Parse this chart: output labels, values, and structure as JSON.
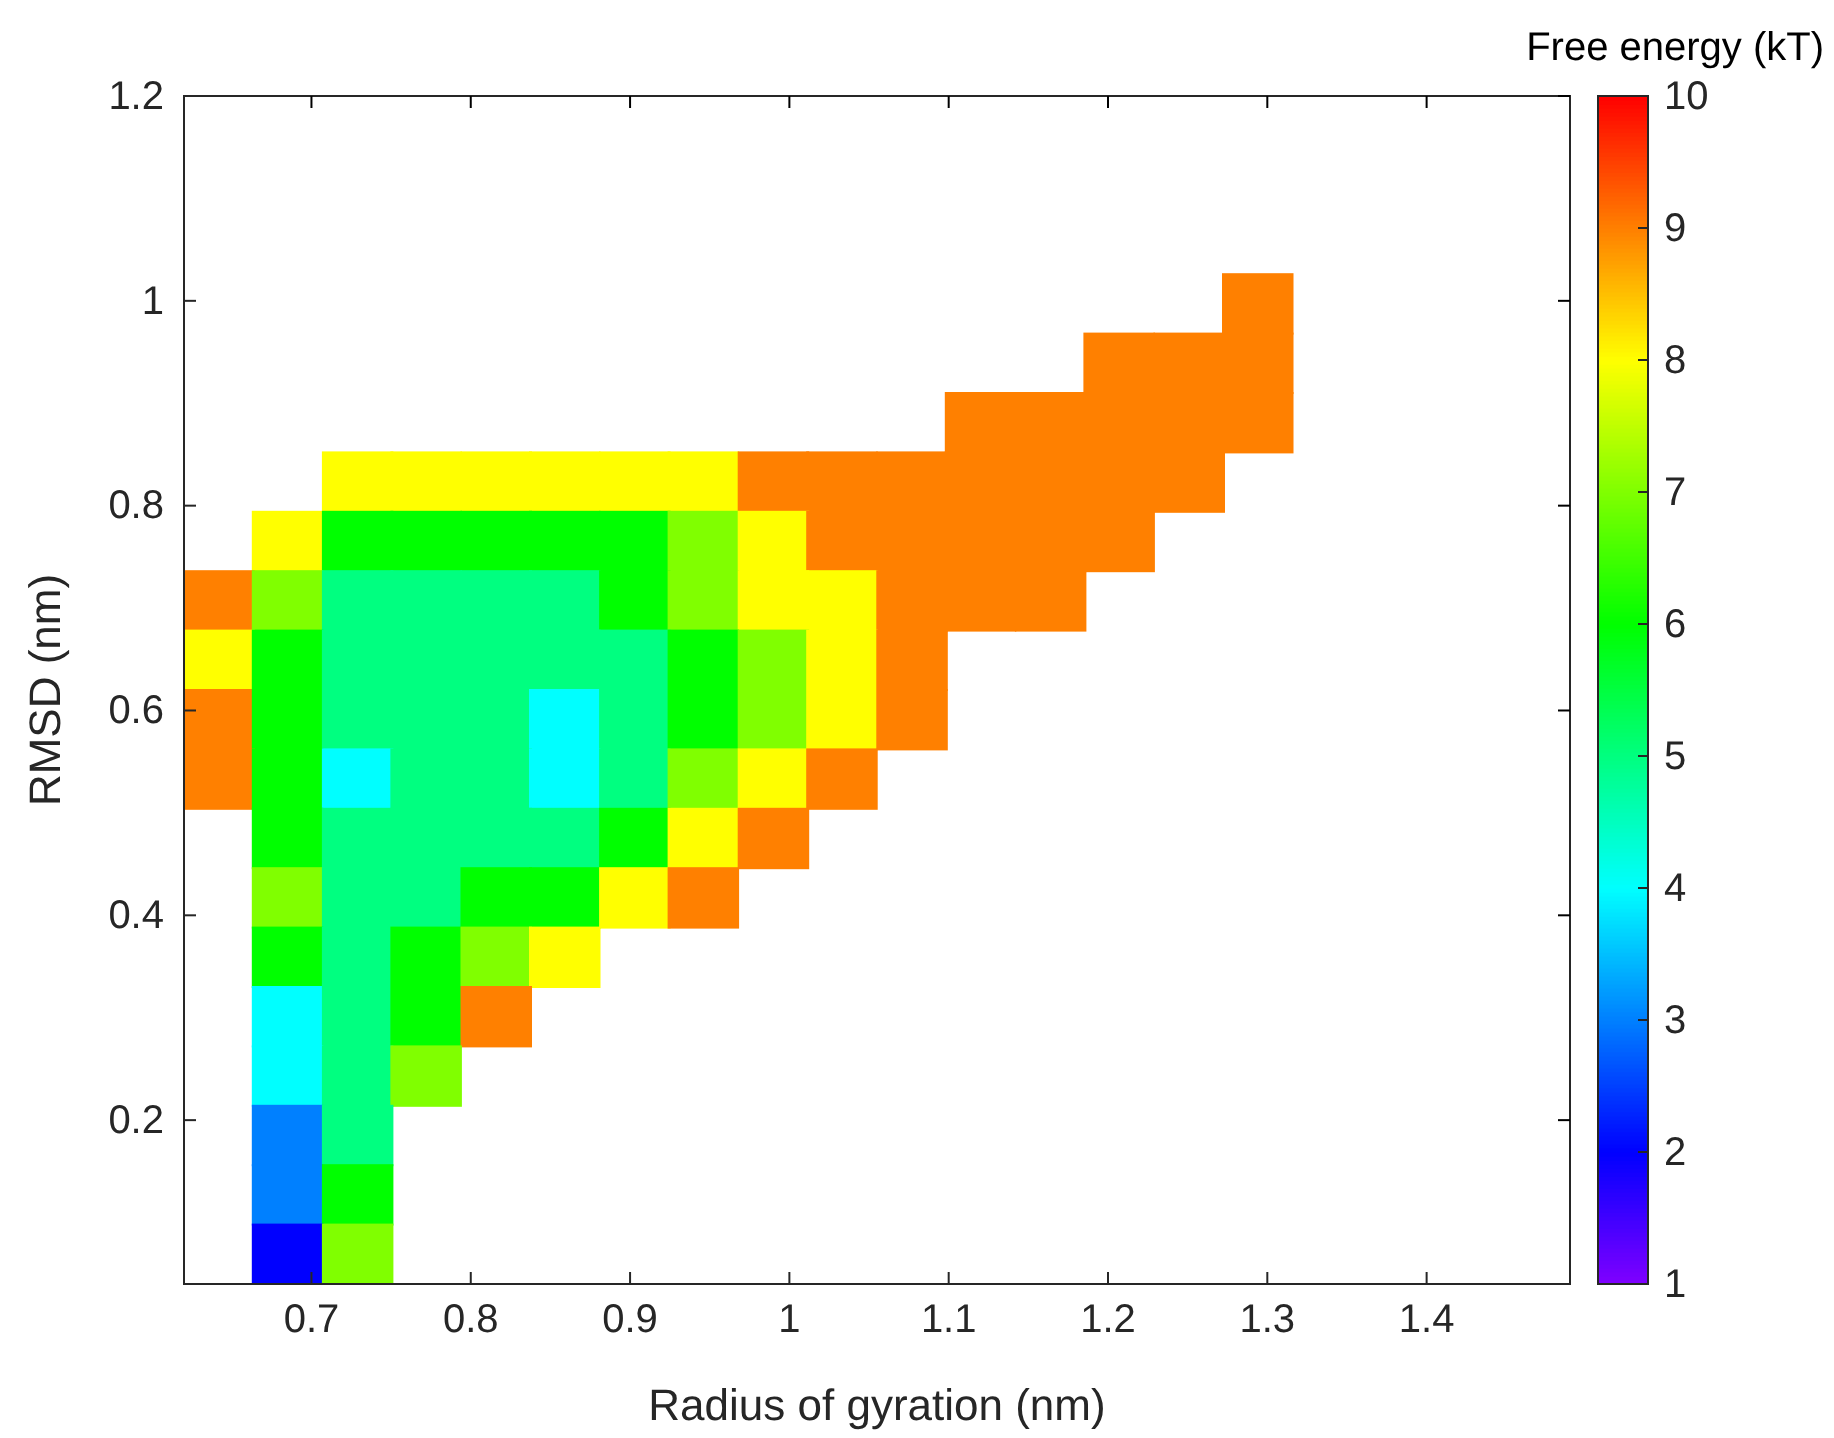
{
  "chart_data": {
    "type": "scatter",
    "marker": "square",
    "xlabel": "Radius of gyration (nm)",
    "ylabel": "RMSD (nm)",
    "clabel": "Free energy (kT)",
    "xlim": [
      0.62,
      1.49
    ],
    "ylim": [
      0.04,
      1.2
    ],
    "xticks": [
      0.7,
      0.8,
      0.9,
      1,
      1.1,
      1.2,
      1.3,
      1.4
    ],
    "yticks": [
      0.2,
      0.4,
      0.6,
      0.8,
      1,
      1.2
    ],
    "clim": [
      1,
      10
    ],
    "cticks": [
      1,
      2,
      3,
      4,
      5,
      6,
      7,
      8,
      9,
      10
    ],
    "x": [
      1.294,
      1.207,
      1.251,
      1.294,
      1.12,
      1.164,
      1.207,
      1.251,
      1.294,
      0.729,
      0.772,
      0.816,
      0.859,
      0.903,
      0.946,
      0.99,
      1.033,
      1.077,
      1.12,
      1.164,
      1.207,
      1.251,
      0.685,
      0.729,
      0.772,
      0.816,
      0.859,
      0.903,
      0.946,
      0.99,
      1.033,
      1.077,
      1.12,
      1.164,
      1.207,
      0.642,
      0.685,
      0.729,
      0.772,
      0.816,
      0.859,
      0.903,
      0.946,
      0.99,
      1.033,
      1.077,
      1.12,
      1.164,
      0.642,
      0.685,
      0.729,
      0.772,
      0.816,
      0.859,
      0.903,
      0.946,
      0.99,
      1.033,
      1.077,
      0.642,
      0.685,
      0.729,
      0.772,
      0.816,
      0.859,
      0.903,
      0.946,
      0.99,
      1.033,
      1.077,
      0.642,
      0.685,
      0.729,
      0.772,
      0.816,
      0.859,
      0.903,
      0.946,
      0.99,
      1.033,
      0.685,
      0.729,
      0.772,
      0.816,
      0.859,
      0.903,
      0.946,
      0.99,
      0.685,
      0.729,
      0.772,
      0.816,
      0.859,
      0.903,
      0.946,
      0.685,
      0.729,
      0.772,
      0.816,
      0.859,
      0.685,
      0.729,
      0.772,
      0.816,
      0.685,
      0.729,
      0.772,
      0.685,
      0.729,
      0.685,
      0.729,
      0.685,
      0.729
    ],
    "values": [
      0.997,
      0.939,
      0.939,
      0.939,
      0.881,
      0.881,
      0.881,
      0.881,
      0.881,
      0.823,
      0.823,
      0.823,
      0.823,
      0.823,
      0.823,
      0.823,
      0.823,
      0.823,
      0.823,
      0.823,
      0.823,
      0.823,
      0.765,
      0.765,
      0.765,
      0.765,
      0.765,
      0.765,
      0.765,
      0.765,
      0.765,
      0.765,
      0.765,
      0.765,
      0.765,
      0.707,
      0.707,
      0.707,
      0.707,
      0.707,
      0.707,
      0.707,
      0.707,
      0.707,
      0.707,
      0.707,
      0.707,
      0.707,
      0.649,
      0.649,
      0.649,
      0.649,
      0.649,
      0.649,
      0.649,
      0.649,
      0.649,
      0.649,
      0.649,
      0.591,
      0.591,
      0.591,
      0.591,
      0.591,
      0.591,
      0.591,
      0.591,
      0.591,
      0.591,
      0.591,
      0.533,
      0.533,
      0.533,
      0.533,
      0.533,
      0.533,
      0.533,
      0.533,
      0.533,
      0.533,
      0.475,
      0.475,
      0.475,
      0.475,
      0.475,
      0.475,
      0.475,
      0.475,
      0.417,
      0.417,
      0.417,
      0.417,
      0.417,
      0.417,
      0.417,
      0.359,
      0.359,
      0.359,
      0.359,
      0.359,
      0.301,
      0.301,
      0.301,
      0.301,
      0.243,
      0.243,
      0.243,
      0.185,
      0.185,
      0.127,
      0.127,
      0.069,
      0.069
    ],
    "cvalues": [
      9,
      9,
      9,
      9,
      9,
      9,
      9,
      9,
      9,
      8,
      8,
      8,
      8,
      8,
      8,
      9,
      9,
      9,
      9,
      9,
      9,
      9,
      8,
      6,
      6,
      6,
      6,
      6,
      7,
      8,
      9,
      9,
      9,
      9,
      9,
      9,
      7,
      5,
      5,
      5,
      5,
      6,
      7,
      8,
      8,
      9,
      9,
      9,
      8,
      6,
      5,
      5,
      5,
      5,
      5,
      6,
      7,
      8,
      9,
      9,
      6,
      5,
      5,
      5,
      4,
      5,
      6,
      7,
      8,
      9,
      9,
      6,
      4,
      5,
      5,
      4,
      5,
      7,
      8,
      9,
      6,
      5,
      5,
      5,
      5,
      6,
      8,
      9,
      7,
      5,
      5,
      6,
      6,
      8,
      9,
      6,
      5,
      6,
      7,
      8,
      4,
      5,
      6,
      9,
      4,
      5,
      7,
      3,
      5,
      3,
      6,
      2,
      7
    ]
  }
}
